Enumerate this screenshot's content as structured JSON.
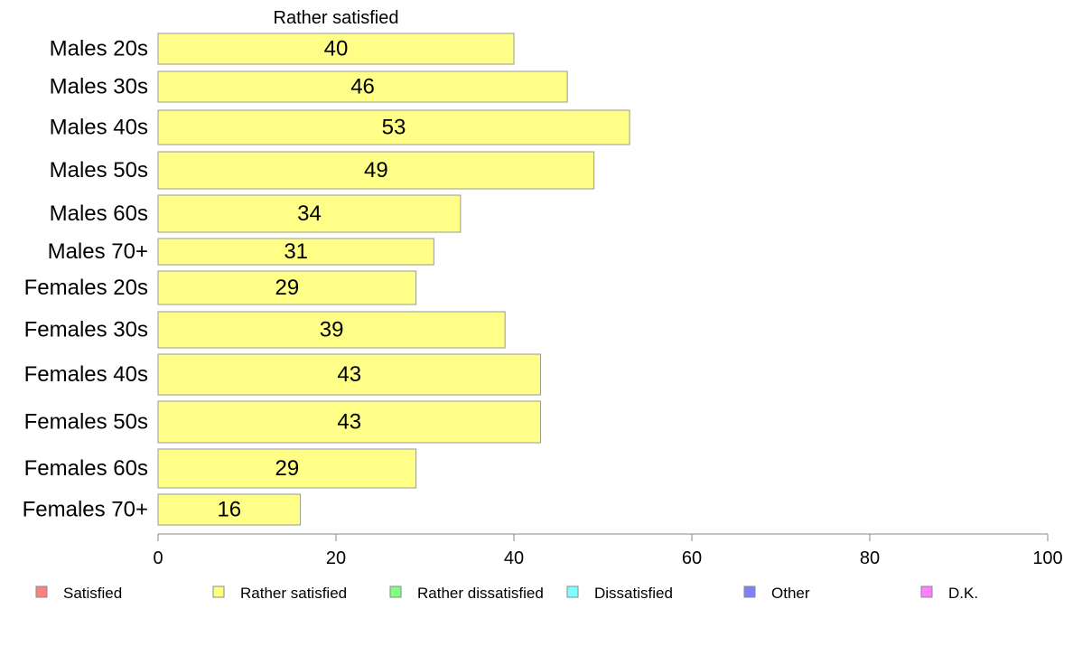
{
  "chart_data": {
    "type": "bar",
    "orientation": "horizontal",
    "title": "Rather satisfied",
    "categories": [
      "Males 20s",
      "Males 30s",
      "Males 40s",
      "Males 50s",
      "Males 60s",
      "Males 70+",
      "Females 20s",
      "Females 30s",
      "Females 40s",
      "Females 50s",
      "Females 60s",
      "Females 70+"
    ],
    "values": [
      40,
      46,
      53,
      49,
      34,
      31,
      29,
      39,
      43,
      43,
      29,
      16
    ],
    "value_labels": [
      "40",
      "46",
      "53",
      "49",
      "34",
      "31",
      "29",
      "39",
      "43",
      "43",
      "29",
      "16"
    ],
    "xlim": [
      0,
      100
    ],
    "x_ticks": [
      0,
      20,
      40,
      60,
      80,
      100
    ],
    "bar_color": "#ffff88",
    "bar_border_color": "#999999",
    "grid": false,
    "legend_placement": "bottom",
    "legend": [
      {
        "label": "Satisfied",
        "color": "#ff8080"
      },
      {
        "label": "Rather satisfied",
        "color": "#ffff80"
      },
      {
        "label": "Rather dissatisfied",
        "color": "#80ff80"
      },
      {
        "label": "Dissatisfied",
        "color": "#80ffff"
      },
      {
        "label": "Other",
        "color": "#8080ff"
      },
      {
        "label": "D.K.",
        "color": "#ff80ff"
      }
    ]
  }
}
